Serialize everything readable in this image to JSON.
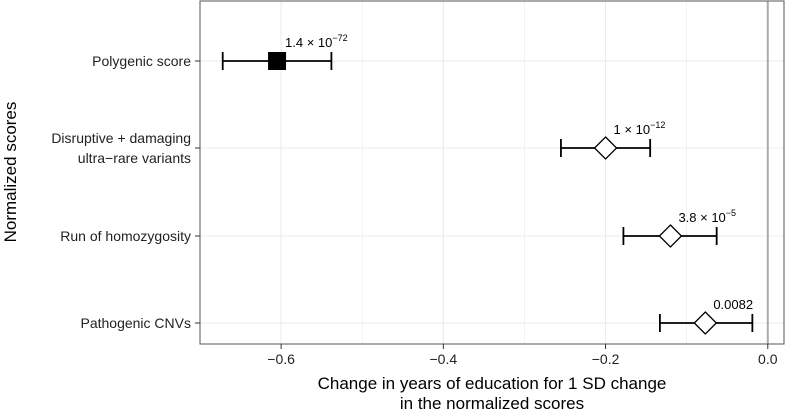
{
  "chart_data": {
    "type": "scatter",
    "xlabel": [
      "Change in years of education for 1 SD change",
      "in the normalized scores"
    ],
    "ylabel": "Normalized scores",
    "xlim": [
      -0.7,
      0.02
    ],
    "x_ticks": [
      -0.6,
      -0.4,
      -0.2,
      0.0
    ],
    "x_tick_labels": [
      "−0.6",
      "−0.4",
      "−0.2",
      "0.0"
    ],
    "reference_line_x": 0.0,
    "grid": true,
    "colors": {
      "panel_border": "#555555",
      "grid": "#ebebeb",
      "reference_line": "#aaaaaa",
      "marks": "#000000"
    },
    "categories": [
      {
        "label_lines": [
          "Polygenic score"
        ],
        "estimate": -0.605,
        "ci_low": -0.672,
        "ci_high": -0.538,
        "marker": "filled-square",
        "pvalue": {
          "mantissa": "1.4",
          "times": "×",
          "base": "10",
          "exponent": "−72"
        }
      },
      {
        "label_lines": [
          "Disruptive + damaging",
          "ultra−rare variants"
        ],
        "estimate": -0.2,
        "ci_low": -0.255,
        "ci_high": -0.145,
        "marker": "open-diamond",
        "pvalue": {
          "mantissa": "1",
          "times": "×",
          "base": "10",
          "exponent": "−12"
        }
      },
      {
        "label_lines": [
          "Run of homozygosity"
        ],
        "estimate": -0.12,
        "ci_low": -0.178,
        "ci_high": -0.063,
        "marker": "open-diamond",
        "pvalue": {
          "mantissa": "3.8",
          "times": "×",
          "base": "10",
          "exponent": "−5"
        }
      },
      {
        "label_lines": [
          "Pathogenic CNVs"
        ],
        "estimate": -0.077,
        "ci_low": -0.133,
        "ci_high": -0.019,
        "marker": "open-diamond",
        "pvalue": {
          "plain": "0.0082"
        }
      }
    ]
  }
}
